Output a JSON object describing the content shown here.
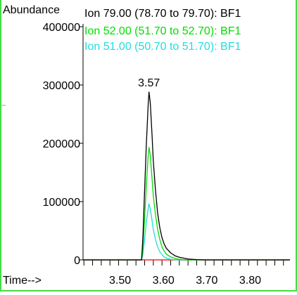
{
  "chart_data": {
    "type": "line",
    "ylabel": "Abundance",
    "xlabel": "Time-->",
    "xlim": [
      3.418,
      3.895
    ],
    "ylim": [
      0,
      400000
    ],
    "x_ticks": [
      3.5,
      3.6,
      3.7,
      3.8
    ],
    "x_tick_labels": [
      "3.50",
      "3.60",
      "3.70",
      "3.80"
    ],
    "y_ticks": [
      0,
      100000,
      200000,
      300000,
      400000
    ],
    "y_tick_labels": [
      "0",
      "100000",
      "200000",
      "300000",
      "400000"
    ],
    "x_minor_step": 0.02,
    "peak_annotation": {
      "text": "3.57",
      "x": 3.57,
      "y": 288000
    },
    "series": [
      {
        "name": "Ion  79.00 (78.70 to 79.70): BF1",
        "color": "#000000",
        "x": [
          3.418,
          3.553,
          3.556,
          3.56,
          3.564,
          3.568,
          3.57,
          3.573,
          3.577,
          3.58,
          3.585,
          3.59,
          3.595,
          3.6,
          3.605,
          3.61,
          3.62,
          3.63,
          3.64,
          3.65,
          3.66,
          3.68,
          3.7,
          3.895
        ],
        "y": [
          0,
          0,
          40000,
          120000,
          200000,
          265000,
          288000,
          270000,
          215000,
          170000,
          120000,
          80000,
          55000,
          38000,
          27000,
          20000,
          12000,
          7000,
          4500,
          3000,
          1500,
          500,
          0,
          0
        ]
      },
      {
        "name": "Ion  52.00 (51.70 to 52.70): BF1",
        "color": "#00dd00",
        "x": [
          3.418,
          3.553,
          3.556,
          3.56,
          3.564,
          3.568,
          3.57,
          3.573,
          3.577,
          3.58,
          3.585,
          3.59,
          3.595,
          3.6,
          3.605,
          3.61,
          3.62,
          3.63,
          3.64,
          3.65,
          3.895
        ],
        "y": [
          0,
          0,
          20000,
          70000,
          130000,
          178000,
          193000,
          180000,
          140000,
          110000,
          78000,
          52000,
          35000,
          22000,
          15000,
          10000,
          5000,
          2500,
          1000,
          0,
          0
        ]
      },
      {
        "name": "Ion  51.00 (50.70 to 51.70): BF1",
        "color": "#22dddd",
        "x": [
          3.418,
          3.553,
          3.556,
          3.56,
          3.564,
          3.568,
          3.57,
          3.573,
          3.577,
          3.58,
          3.585,
          3.59,
          3.595,
          3.6,
          3.605,
          3.61,
          3.62,
          3.63,
          3.895
        ],
        "y": [
          0,
          0,
          10000,
          35000,
          65000,
          88000,
          96000,
          88000,
          68000,
          52000,
          35000,
          22000,
          14000,
          9000,
          5000,
          3000,
          1000,
          0,
          0
        ]
      },
      {
        "name": "",
        "color": "#ff2222",
        "x": [
          3.418,
          3.895
        ],
        "y": [
          0,
          0
        ]
      }
    ]
  }
}
